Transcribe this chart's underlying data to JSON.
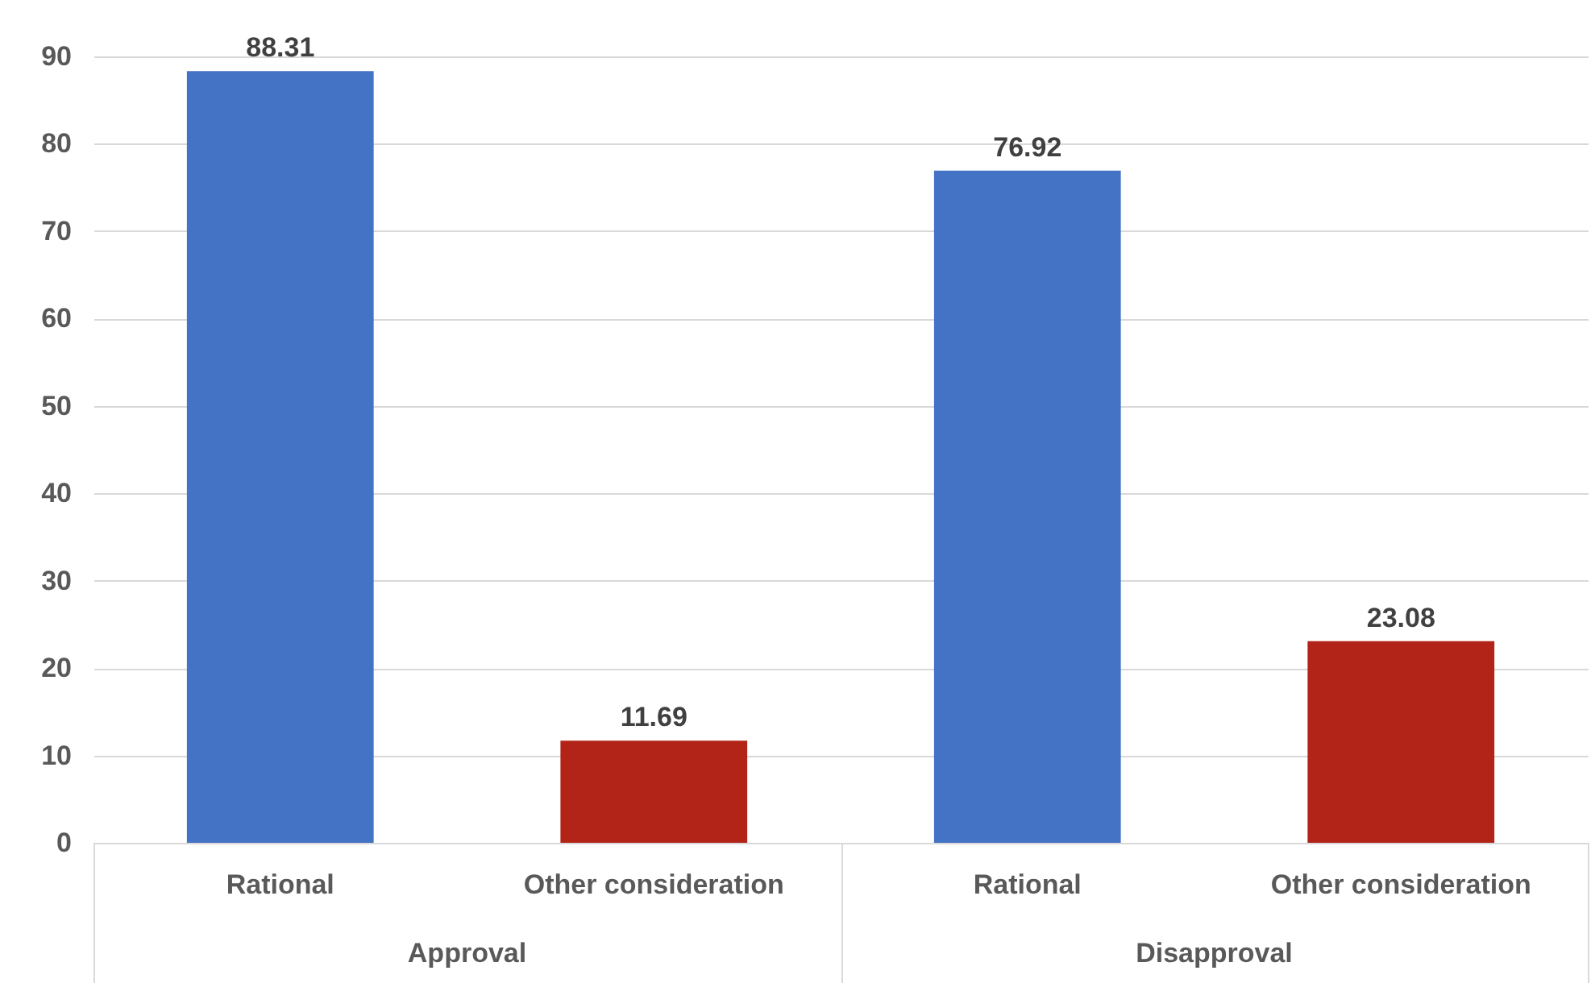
{
  "chart_data": {
    "type": "bar",
    "categories": [
      "Rational",
      "Other consideration",
      "Rational",
      "Other consideration"
    ],
    "values": [
      88.31,
      11.69,
      76.92,
      23.08
    ],
    "colors": [
      "#4472c4",
      "#b22418",
      "#4472c4",
      "#b22418"
    ],
    "ylim": [
      0,
      90
    ],
    "yticks": [
      0,
      10,
      20,
      30,
      40,
      50,
      60,
      70,
      80,
      90
    ],
    "grid": "y",
    "data_labels": true,
    "annotations": [
      "Approval",
      "Disapproval"
    ]
  }
}
